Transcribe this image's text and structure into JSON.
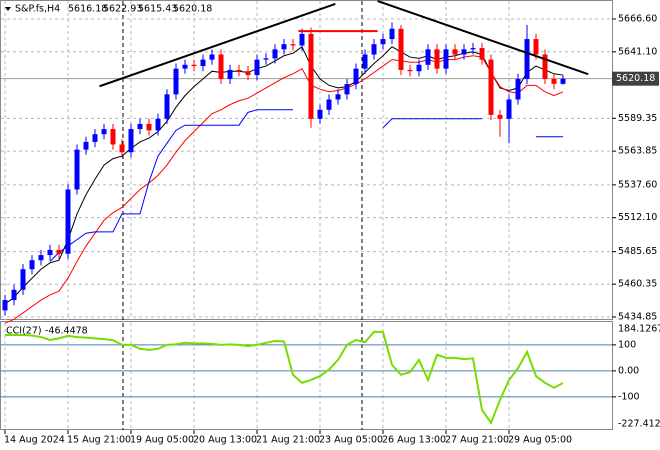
{
  "chart_data": [
    {
      "type": "candlestick",
      "title": "S&P.fs,H4",
      "categories": [
        "14 Aug 2024",
        null,
        null,
        null,
        null,
        null,
        null,
        "15 Aug 21:00",
        null,
        null,
        null,
        null,
        null,
        null,
        "19 Aug 05:00",
        null,
        null,
        null,
        null,
        null,
        null,
        "20 Aug 13:00",
        null,
        null,
        null,
        null,
        null,
        null,
        "21 Aug 21:00",
        null,
        null,
        null,
        null,
        null,
        null,
        "23 Aug 05:00",
        null,
        null,
        null,
        null,
        null,
        null,
        "26 Aug 13:00",
        null,
        null,
        null,
        null,
        null,
        null,
        "27 Aug 21:00",
        null,
        null,
        null,
        null,
        null,
        null,
        "29 Aug 05:00",
        null,
        null,
        null,
        null,
        null,
        null
      ],
      "open": [
        5440,
        5448,
        5456,
        5472,
        5479,
        5483,
        5487,
        5484,
        5534,
        5565,
        5571,
        5577,
        5581,
        5569,
        5563,
        5581,
        5585,
        5580,
        5589,
        5608,
        5628,
        5631,
        5630,
        5635,
        5639,
        5620,
        5627,
        5626,
        5623,
        5635,
        5636,
        5643,
        5647,
        5646,
        5655,
        5589,
        5596,
        5604,
        5608,
        5616,
        5628,
        5639,
        5647,
        5651,
        5659,
        5627,
        5626,
        5631,
        5643,
        5628,
        5643,
        5639,
        5643,
        5644,
        5635,
        5592,
        5589,
        5604,
        5620,
        5651,
        5639,
        5620,
        5616.18
      ],
      "high": [
        5452,
        5460,
        5476,
        5483,
        5487,
        5491,
        5491,
        5538,
        5569,
        5575,
        5581,
        5585,
        5585,
        5573,
        5585,
        5589,
        5589,
        5593,
        5612,
        5632,
        5635,
        5635,
        5639,
        5643,
        5643,
        5631,
        5631,
        5630,
        5639,
        5640,
        5647,
        5651,
        5651,
        5659,
        5660,
        5600,
        5608,
        5612,
        5620,
        5632,
        5643,
        5651,
        5655,
        5664,
        5662,
        5631,
        5635,
        5647,
        5647,
        5647,
        5647,
        5647,
        5648,
        5648,
        5639,
        5596,
        5608,
        5624,
        5662,
        5655,
        5643,
        5624,
        5622.93
      ],
      "low": [
        5436,
        5444,
        5452,
        5468,
        5475,
        5479,
        5480,
        5480,
        5530,
        5561,
        5567,
        5573,
        5565,
        5559,
        5559,
        5577,
        5576,
        5576,
        5585,
        5604,
        5624,
        5626,
        5626,
        5631,
        5616,
        5616,
        5622,
        5619,
        5619,
        5631,
        5632,
        5639,
        5642,
        5642,
        5582,
        5585,
        5592,
        5600,
        5604,
        5612,
        5624,
        5635,
        5643,
        5647,
        5623,
        5622,
        5622,
        5627,
        5624,
        5624,
        5635,
        5635,
        5639,
        5631,
        5588,
        5575,
        5570,
        5600,
        5616,
        5635,
        5616,
        5612,
        5615.43
      ],
      "close": [
        5448,
        5456,
        5472,
        5479,
        5483,
        5487,
        5484,
        5534,
        5565,
        5571,
        5577,
        5581,
        5569,
        5563,
        5581,
        5585,
        5580,
        5589,
        5608,
        5628,
        5631,
        5630,
        5635,
        5639,
        5620,
        5627,
        5626,
        5623,
        5635,
        5636,
        5643,
        5647,
        5646,
        5655,
        5589,
        5596,
        5604,
        5608,
        5616,
        5628,
        5639,
        5647,
        5651,
        5659,
        5627,
        5626,
        5631,
        5643,
        5628,
        5643,
        5639,
        5643,
        5644,
        5635,
        5592,
        5589,
        5604,
        5620,
        5651,
        5639,
        5620,
        5616.18,
        5620.18
      ],
      "colors": {
        "up": "#0000ff",
        "down": "#ff0000"
      },
      "series": [
        {
          "color": "#000000",
          "values": [
            5445,
            5450,
            5458,
            5465,
            5472,
            5477,
            5479,
            5495,
            5515,
            5530,
            5542,
            5553,
            5558,
            5560,
            5566,
            5571,
            5574,
            5579,
            5587,
            5598,
            5607,
            5614,
            5620,
            5626,
            5625,
            5626,
            5626,
            5625,
            5628,
            5630,
            5634,
            5638,
            5640,
            5645,
            5630,
            5620,
            5615,
            5613,
            5614,
            5618,
            5625,
            5632,
            5638,
            5645,
            5641,
            5637,
            5636,
            5638,
            5635,
            5637,
            5638,
            5640,
            5641,
            5639,
            5625,
            5613,
            5611,
            5613,
            5625,
            5630,
            5627,
            5624,
            5623
          ]
        },
        {
          "color": "#ff0000",
          "values": [
            5430,
            5433,
            5438,
            5443,
            5448,
            5452,
            5455,
            5465,
            5478,
            5490,
            5500,
            5510,
            5516,
            5520,
            5527,
            5534,
            5539,
            5545,
            5553,
            5563,
            5572,
            5579,
            5586,
            5593,
            5596,
            5600,
            5603,
            5605,
            5609,
            5613,
            5617,
            5621,
            5624,
            5628,
            5615,
            5612,
            5610,
            5611,
            5613,
            5616,
            5620,
            5625,
            5630,
            5635,
            5634,
            5633,
            5633,
            5635,
            5633,
            5635,
            5635,
            5637,
            5638,
            5637,
            5625,
            5614,
            5610,
            5609,
            5615,
            5615,
            5610,
            5607,
            5610
          ]
        },
        {
          "color": "#0000ff",
          "values": [
            null,
            null,
            null,
            null,
            null,
            5478,
            5485,
            5490,
            5495,
            5500,
            5501,
            5501,
            5501,
            5515,
            5515,
            5515,
            5540,
            5560,
            5570,
            5580,
            5584,
            5584,
            5584,
            5584,
            5584,
            5584,
            5584,
            5594,
            5596,
            5596,
            5596,
            5596,
            5596,
            null,
            null,
            null,
            null,
            null,
            null,
            null,
            null,
            null,
            5582,
            5589,
            5589,
            5589,
            5589,
            5589,
            5589,
            5589,
            5589,
            5589,
            5589,
            5589,
            null,
            null,
            null,
            null,
            null,
            5575,
            5575,
            5575,
            5575
          ]
        }
      ],
      "trendlines": [
        {
          "color": "#000000",
          "x": [
            10.5,
            36.7
          ],
          "y": [
            5614.3,
            5678.3
          ]
        },
        {
          "color": "#000000",
          "x": [
            41.4,
            64.8
          ],
          "y": [
            5680.6,
            5623.7
          ]
        },
        {
          "color": "#ff0000",
          "x": [
            32.6,
            41.4
          ],
          "y": [
            5657.2,
            5657.2
          ]
        }
      ],
      "ylim": [
        5432.5,
        5680.6
      ],
      "yticks": [
        5434.85,
        5460.35,
        5485.65,
        {
          "value": 5512.1,
          "label": "5512.10"
        },
        {
          "value": 5537.6,
          "label": "5537.60"
        },
        5563.85,
        5589.35,
        {
          "value": 5641.1,
          "label": "5641.10"
        },
        {
          "value": 5666.6,
          "label": "5666.60"
        }
      ],
      "grid": true
    },
    {
      "type": "line",
      "title": "CCI(27)",
      "color": "#77dd00",
      "values": [
        138,
        138,
        138,
        136,
        130,
        119,
        125,
        135,
        130,
        128,
        125,
        122,
        118,
        100,
        100,
        85,
        81,
        85,
        100,
        102,
        108,
        106,
        106,
        104,
        100,
        102,
        100,
        95,
        100,
        108,
        115,
        113,
        -15,
        -46,
        -35,
        -20,
        5,
        42,
        100,
        119,
        110,
        150,
        150,
        23,
        -15,
        -5,
        42,
        -35,
        62,
        50,
        50,
        45,
        48,
        -150,
        -200,
        -112,
        -35,
        10,
        73,
        -20,
        -46,
        -65,
        -46.4478
      ],
      "ylim": [
        -227.4128,
        184.1267
      ],
      "yticks": [
        100,
        {
          "value": 0,
          "label": "0.00"
        },
        -100
      ],
      "level_color": "#4a7fb0",
      "grid": true
    }
  ]
}
